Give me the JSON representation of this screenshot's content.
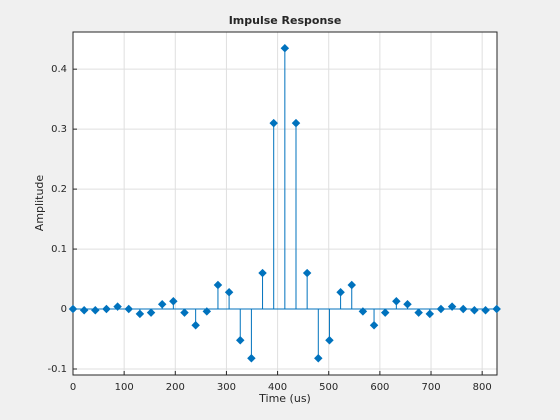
{
  "chart_data": {
    "type": "stem",
    "title": "Impulse Response",
    "xlabel": "Time (us)",
    "ylabel": "Amplitude",
    "x": [
      0,
      21.8,
      43.6,
      65.4,
      87.2,
      109,
      130.8,
      152.6,
      174.4,
      196.2,
      218,
      239.8,
      261.6,
      283.4,
      305.2,
      327,
      348.8,
      370.6,
      392.4,
      414.2,
      436,
      457.8,
      479.6,
      501.4,
      523.2,
      545,
      566.8,
      588.6,
      610.4,
      632.2,
      654,
      675.8,
      697.6,
      719.4,
      741.2,
      763,
      784.8,
      806.6,
      828.4
    ],
    "series": [
      {
        "color": "#0072bd",
        "values": [
          0,
          -0.002,
          -0.002,
          0,
          0.004,
          0,
          -0.008,
          -0.006,
          0.008,
          0.013,
          -0.006,
          -0.027,
          -0.004,
          0.04,
          0.028,
          -0.052,
          -0.082,
          0.06,
          0.31,
          0.435,
          0.31,
          0.06,
          -0.082,
          -0.052,
          0.028,
          0.04,
          -0.004,
          -0.027,
          -0.006,
          0.013,
          0.008,
          -0.006,
          -0.008,
          0,
          0.004,
          0,
          -0.002,
          -0.002,
          0
        ]
      }
    ],
    "xlim": [
      0,
      829
    ],
    "xticks": [
      0,
      100,
      200,
      300,
      400,
      500,
      600,
      700,
      800
    ],
    "ylim": [
      -0.11,
      0.462
    ],
    "yticks": [
      -0.1,
      0,
      0.1,
      0.2,
      0.3,
      0.4
    ],
    "grid": true
  }
}
